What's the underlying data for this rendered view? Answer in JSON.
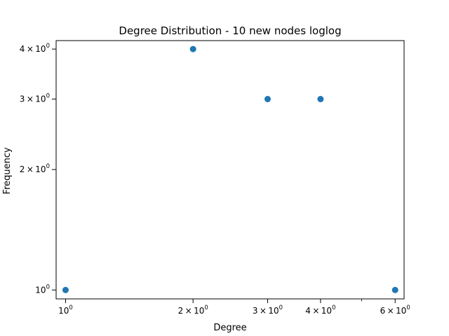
{
  "chart_data": {
    "type": "scatter",
    "title": "Degree Distribution - 10 new nodes loglog",
    "xlabel": "Degree",
    "ylabel": "Frequency",
    "xscale": "log",
    "yscale": "log",
    "xlim": [
      0.95,
      6.3
    ],
    "ylim": [
      0.95,
      4.2
    ],
    "grid": false,
    "marker_color": "#1f77b4",
    "x": [
      1,
      2,
      3,
      4,
      6
    ],
    "y": [
      1,
      4,
      3,
      3,
      1
    ],
    "xticks": [
      {
        "value": 1,
        "mantissa": "",
        "exponent": "0"
      },
      {
        "value": 2,
        "mantissa": "2",
        "exponent": "0"
      },
      {
        "value": 3,
        "mantissa": "3",
        "exponent": "0"
      },
      {
        "value": 4,
        "mantissa": "4",
        "exponent": "0"
      },
      {
        "value": 6,
        "mantissa": "6",
        "exponent": "0"
      }
    ],
    "yticks": [
      {
        "value": 1,
        "mantissa": "",
        "exponent": "0"
      },
      {
        "value": 2,
        "mantissa": "2",
        "exponent": "0"
      },
      {
        "value": 3,
        "mantissa": "3",
        "exponent": "0"
      },
      {
        "value": 4,
        "mantissa": "4",
        "exponent": "0"
      }
    ],
    "xminorticks": [
      5
    ],
    "tick_base": "10",
    "tick_times": "×"
  }
}
